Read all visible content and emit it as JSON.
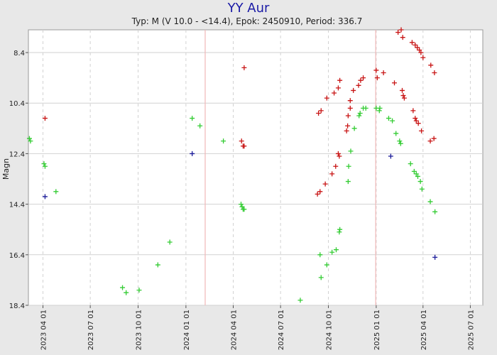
{
  "chart_data": {
    "type": "scatter",
    "title": "YY Aur",
    "subtitle": "Typ: M (V 10.0 - <14.4), Epok: 2450910, Period: 336.7",
    "xlabel": "",
    "ylabel": "Magn",
    "x_type": "date",
    "xlim": [
      "2023-03-04",
      "2025-07-25"
    ],
    "ylim": [
      18.4,
      7.5
    ],
    "y_reversed": true,
    "grid": true,
    "y_ticks": [
      8.4,
      10.4,
      12.4,
      14.4,
      16.4,
      18.4
    ],
    "y_tick_labels": [
      "8.4",
      "10.4",
      "12.4",
      "14.4",
      "16.4",
      "18.4"
    ],
    "x_ticks": [
      "2023-04-01",
      "2023-07-01",
      "2023-10-01",
      "2024-01-01",
      "2024-04-01",
      "2024-07-01",
      "2024-10-01",
      "2025-01-01",
      "2025-04-01",
      "2025-07-01"
    ],
    "x_tick_labels": [
      "2023 04 01",
      "2023 07 01",
      "2023 10 01",
      "2024 01 01",
      "2024 04 01",
      "2024 07 01",
      "2024 10 01",
      "2025 01 01",
      "2025 04 01",
      "2025 07 01"
    ],
    "vertical_lines": [
      "2024-02-07",
      "2024-12-31"
    ],
    "colors": {
      "red": "#c81414",
      "green": "#33cc33",
      "blue": "#1a1a99",
      "vline": "#f0b8b8",
      "grid": "#d2d2d2"
    },
    "series": [
      {
        "color": "red",
        "points": [
          {
            "x": "2023-04-05",
            "y": 11.0
          },
          {
            "x": "2024-04-17",
            "y": 11.9
          },
          {
            "x": "2024-04-20",
            "y": 12.1
          },
          {
            "x": "2024-04-22",
            "y": 12.1
          },
          {
            "x": "2024-04-22",
            "y": 9.0
          },
          {
            "x": "2024-09-10",
            "y": 14.0
          },
          {
            "x": "2024-09-12",
            "y": 10.8
          },
          {
            "x": "2024-09-15",
            "y": 13.9
          },
          {
            "x": "2024-09-17",
            "y": 10.7
          },
          {
            "x": "2024-09-25",
            "y": 13.6
          },
          {
            "x": "2024-09-28",
            "y": 10.2
          },
          {
            "x": "2024-10-08",
            "y": 13.2
          },
          {
            "x": "2024-10-12",
            "y": 10.0
          },
          {
            "x": "2024-10-15",
            "y": 12.9
          },
          {
            "x": "2024-10-20",
            "y": 12.4
          },
          {
            "x": "2024-10-22",
            "y": 12.5
          },
          {
            "x": "2024-10-23",
            "y": 9.5
          },
          {
            "x": "2024-10-20",
            "y": 9.8
          },
          {
            "x": "2024-11-05",
            "y": 11.5
          },
          {
            "x": "2024-11-07",
            "y": 11.3
          },
          {
            "x": "2024-11-08",
            "y": 10.9
          },
          {
            "x": "2024-11-12",
            "y": 10.6
          },
          {
            "x": "2024-11-12",
            "y": 10.3
          },
          {
            "x": "2024-11-18",
            "y": 9.9
          },
          {
            "x": "2024-11-28",
            "y": 9.7
          },
          {
            "x": "2024-12-02",
            "y": 9.5
          },
          {
            "x": "2024-12-07",
            "y": 9.4
          },
          {
            "x": "2025-01-01",
            "y": 9.1
          },
          {
            "x": "2025-01-03",
            "y": 9.4
          },
          {
            "x": "2025-01-15",
            "y": 9.2
          },
          {
            "x": "2025-02-05",
            "y": 9.6
          },
          {
            "x": "2025-02-20",
            "y": 9.9
          },
          {
            "x": "2025-02-22",
            "y": 10.1
          },
          {
            "x": "2025-02-24",
            "y": 10.2
          },
          {
            "x": "2025-02-12",
            "y": 7.6
          },
          {
            "x": "2025-02-18",
            "y": 7.5
          },
          {
            "x": "2025-02-21",
            "y": 7.8
          },
          {
            "x": "2025-03-11",
            "y": 8.0
          },
          {
            "x": "2025-03-17",
            "y": 8.1
          },
          {
            "x": "2025-03-21",
            "y": 8.2
          },
          {
            "x": "2025-03-25",
            "y": 8.3
          },
          {
            "x": "2025-03-28",
            "y": 8.4
          },
          {
            "x": "2025-04-01",
            "y": 8.6
          },
          {
            "x": "2025-03-13",
            "y": 10.7
          },
          {
            "x": "2025-03-17",
            "y": 11.0
          },
          {
            "x": "2025-03-19",
            "y": 11.1
          },
          {
            "x": "2025-03-23",
            "y": 11.2
          },
          {
            "x": "2025-03-29",
            "y": 11.5
          },
          {
            "x": "2025-04-15",
            "y": 11.9
          },
          {
            "x": "2025-04-22",
            "y": 11.8
          },
          {
            "x": "2025-04-16",
            "y": 8.9
          },
          {
            "x": "2025-04-23",
            "y": 9.2
          }
        ]
      },
      {
        "color": "green",
        "points": [
          {
            "x": "2023-03-06",
            "y": 11.8
          },
          {
            "x": "2023-03-08",
            "y": 11.9
          },
          {
            "x": "2023-04-03",
            "y": 12.8
          },
          {
            "x": "2023-04-05",
            "y": 12.9
          },
          {
            "x": "2023-04-26",
            "y": 13.9
          },
          {
            "x": "2023-09-01",
            "y": 17.7
          },
          {
            "x": "2023-09-08",
            "y": 17.9
          },
          {
            "x": "2023-10-03",
            "y": 17.8
          },
          {
            "x": "2023-11-08",
            "y": 16.8
          },
          {
            "x": "2023-12-01",
            "y": 15.9
          },
          {
            "x": "2024-01-13",
            "y": 11.0
          },
          {
            "x": "2024-01-28",
            "y": 11.3
          },
          {
            "x": "2024-03-13",
            "y": 11.9
          },
          {
            "x": "2024-04-16",
            "y": 14.4
          },
          {
            "x": "2024-04-18",
            "y": 14.5
          },
          {
            "x": "2024-04-20",
            "y": 14.6
          },
          {
            "x": "2024-04-22",
            "y": 14.6
          },
          {
            "x": "2024-08-08",
            "y": 18.2
          },
          {
            "x": "2024-09-15",
            "y": 16.4
          },
          {
            "x": "2024-09-17",
            "y": 17.3
          },
          {
            "x": "2024-09-28",
            "y": 16.8
          },
          {
            "x": "2024-10-08",
            "y": 16.3
          },
          {
            "x": "2024-10-16",
            "y": 16.2
          },
          {
            "x": "2024-10-22",
            "y": 15.5
          },
          {
            "x": "2024-10-23",
            "y": 15.4
          },
          {
            "x": "2024-11-08",
            "y": 13.5
          },
          {
            "x": "2024-11-09",
            "y": 12.9
          },
          {
            "x": "2024-11-13",
            "y": 12.3
          },
          {
            "x": "2024-11-20",
            "y": 11.4
          },
          {
            "x": "2024-11-29",
            "y": 10.9
          },
          {
            "x": "2024-12-01",
            "y": 10.8
          },
          {
            "x": "2024-12-07",
            "y": 10.6
          },
          {
            "x": "2024-12-12",
            "y": 10.6
          },
          {
            "x": "2025-01-01",
            "y": 10.6
          },
          {
            "x": "2025-01-07",
            "y": 10.7
          },
          {
            "x": "2025-01-08",
            "y": 10.6
          },
          {
            "x": "2025-01-25",
            "y": 11.0
          },
          {
            "x": "2025-02-01",
            "y": 11.1
          },
          {
            "x": "2025-02-08",
            "y": 11.6
          },
          {
            "x": "2025-02-15",
            "y": 11.9
          },
          {
            "x": "2025-02-17",
            "y": 12.0
          },
          {
            "x": "2025-03-08",
            "y": 12.8
          },
          {
            "x": "2025-03-15",
            "y": 13.1
          },
          {
            "x": "2025-03-19",
            "y": 13.2
          },
          {
            "x": "2025-03-22",
            "y": 13.3
          },
          {
            "x": "2025-03-27",
            "y": 13.5
          },
          {
            "x": "2025-03-30",
            "y": 13.8
          },
          {
            "x": "2025-04-15",
            "y": 14.3
          },
          {
            "x": "2025-04-24",
            "y": 14.7
          }
        ]
      },
      {
        "color": "blue",
        "points": [
          {
            "x": "2023-04-05",
            "y": 14.1
          },
          {
            "x": "2024-01-13",
            "y": 12.4
          },
          {
            "x": "2025-01-29",
            "y": 12.5
          },
          {
            "x": "2025-04-24",
            "y": 16.5
          }
        ]
      }
    ]
  }
}
